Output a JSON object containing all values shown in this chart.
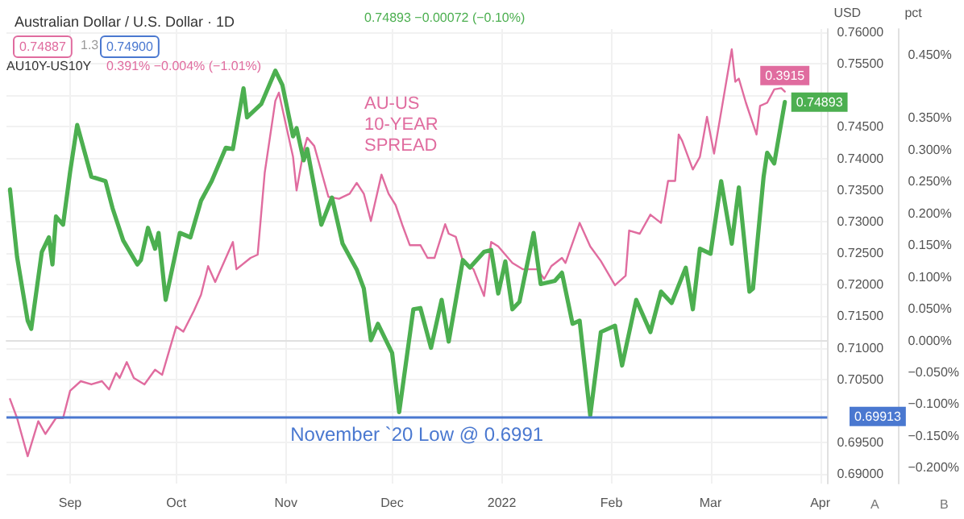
{
  "chart_data": {
    "type": "line",
    "title": "Australian Dollar / U.S. Dollar · 1D",
    "ylabel": "USD",
    "y2label": "pct",
    "annotations": [
      "0.74893 −0.00072 (−0.10%)",
      "0.74887",
      "1.3",
      "0.74900",
      "AU10Y-US10Y",
      "0.391% −0.004% (−1.01%)",
      "A",
      "B",
      "0.69913"
    ],
    "xlim": [
      "2021-08-14",
      "2022-04-03"
    ],
    "xticks": [
      {
        "value": "2021-09-01",
        "label": "Sep"
      },
      {
        "value": "2021-10-01",
        "label": "Oct"
      },
      {
        "value": "2021-11-01",
        "label": "Nov"
      },
      {
        "value": "2021-12-01",
        "label": "Dec"
      },
      {
        "value": "2022-01-01",
        "label": "2022"
      },
      {
        "value": "2022-02-01",
        "label": "Feb"
      },
      {
        "value": "2022-03-01",
        "label": "Mar"
      },
      {
        "value": "2022-04-01",
        "label": "Apr"
      }
    ],
    "ylim": [
      0.6885,
      0.7605
    ],
    "yticks": [
      {
        "value": 0.69,
        "label": "0.69000"
      },
      {
        "value": 0.695,
        "label": "0.69500"
      },
      {
        "value": 0.7,
        "label": null
      },
      {
        "value": 0.705,
        "label": "0.70500"
      },
      {
        "value": 0.71,
        "label": "0.71000"
      },
      {
        "value": 0.715,
        "label": "0.71500"
      },
      {
        "value": 0.72,
        "label": "0.72000"
      },
      {
        "value": 0.725,
        "label": "0.72500"
      },
      {
        "value": 0.73,
        "label": "0.73000"
      },
      {
        "value": 0.735,
        "label": "0.73500"
      },
      {
        "value": 0.74,
        "label": "0.74000"
      },
      {
        "value": 0.745,
        "label": "0.74500"
      },
      {
        "value": 0.75,
        "label": null
      },
      {
        "value": 0.755,
        "label": "0.75500"
      },
      {
        "value": 0.76,
        "label": "0.76000"
      }
    ],
    "y2lim": [
      -0.225,
      0.49
    ],
    "y2ticks": [
      {
        "value": -0.2,
        "label": "−0.200%"
      },
      {
        "value": -0.15,
        "label": "−0.150%"
      },
      {
        "value": -0.1,
        "label": "−0.100%"
      },
      {
        "value": -0.05,
        "label": "−0.050%"
      },
      {
        "value": 0,
        "label": "0.000%"
      },
      {
        "value": 0.05,
        "label": "0.050%"
      },
      {
        "value": 0.1,
        "label": "0.100%"
      },
      {
        "value": 0.15,
        "label": "0.150%"
      },
      {
        "value": 0.2,
        "label": "0.200%"
      },
      {
        "value": 0.25,
        "label": "0.250%"
      },
      {
        "value": 0.3,
        "label": "0.300%"
      },
      {
        "value": 0.35,
        "label": "0.350%"
      },
      {
        "value": 0.45,
        "label": "0.450%"
      }
    ],
    "grid": true,
    "marker": "none",
    "line_style": "solid",
    "ref_lines": [
      {
        "axis": "y",
        "value": 0.69913,
        "label": "November `20 Low @ 0.6991",
        "color": "#4a78d0"
      }
    ],
    "series": [
      {
        "color": "#4caf50",
        "x": [
          "2021-08-15",
          "2021-08-17",
          "2021-08-20",
          "2021-08-21",
          "2021-08-24",
          "2021-08-26",
          "2021-08-27",
          "2021-08-28",
          "2021-08-30",
          "2021-09-01",
          "2021-09-03",
          "2021-09-07",
          "2021-09-11",
          "2021-09-13",
          "2021-09-16",
          "2021-09-20",
          "2021-09-21",
          "2021-09-23",
          "2021-09-25",
          "2021-09-26",
          "2021-09-28",
          "2021-10-02",
          "2021-10-05",
          "2021-10-08",
          "2021-10-11",
          "2021-10-15",
          "2021-10-17",
          "2021-10-20",
          "2021-10-21",
          "2021-10-25",
          "2021-10-29",
          "2021-10-31",
          "2021-11-03",
          "2021-11-04",
          "2021-11-06",
          "2021-11-07",
          "2021-11-11",
          "2021-11-14",
          "2021-11-17",
          "2021-11-21",
          "2021-11-23",
          "2021-11-25",
          "2021-11-27",
          "2021-12-01",
          "2021-12-03",
          "2021-12-07",
          "2021-12-09",
          "2021-12-12",
          "2021-12-15",
          "2021-12-17",
          "2021-12-21",
          "2021-12-23",
          "2021-12-27",
          "2021-12-29",
          "2021-12-31",
          "2022-01-02",
          "2022-01-04",
          "2022-01-06",
          "2022-01-10",
          "2022-01-12",
          "2022-01-16",
          "2022-01-18",
          "2022-01-21",
          "2022-01-23",
          "2022-01-26",
          "2022-01-29",
          "2022-02-02",
          "2022-02-04",
          "2022-02-08",
          "2022-02-12",
          "2022-02-15",
          "2022-02-18",
          "2022-02-22",
          "2022-02-24",
          "2022-02-26",
          "2022-03-01",
          "2022-03-04",
          "2022-03-07",
          "2022-03-09",
          "2022-03-12",
          "2022-03-13",
          "2022-03-16",
          "2022-03-17",
          "2022-03-19",
          "2022-03-22"
        ],
        "values": [
          0.7351,
          0.7244,
          0.7143,
          0.713,
          0.7252,
          0.7275,
          0.7232,
          0.7308,
          0.7295,
          0.7379,
          0.7453,
          0.7371,
          0.7364,
          0.7321,
          0.727,
          0.7232,
          0.7239,
          0.729,
          0.7257,
          0.7282,
          0.7176,
          0.7282,
          0.7275,
          0.7333,
          0.7364,
          0.7417,
          0.7415,
          0.7511,
          0.7465,
          0.7486,
          0.7539,
          0.7516,
          0.7435,
          0.7448,
          0.7397,
          0.7415,
          0.7295,
          0.7338,
          0.7265,
          0.7224,
          0.7194,
          0.7112,
          0.7138,
          0.7092,
          0.6998,
          0.7161,
          0.7163,
          0.71,
          0.7176,
          0.711,
          0.7239,
          0.7227,
          0.7252,
          0.7255,
          0.7186,
          0.7237,
          0.7161,
          0.7173,
          0.7282,
          0.7201,
          0.7206,
          0.7219,
          0.7138,
          0.7143,
          0.6993,
          0.7125,
          0.7135,
          0.7072,
          0.7176,
          0.7125,
          0.7189,
          0.7171,
          0.7227,
          0.7161,
          0.7257,
          0.7249,
          0.7364,
          0.7265,
          0.7354,
          0.7189,
          0.7194,
          0.7371,
          0.7409,
          0.7392,
          0.74893
        ],
        "value_labels": [
          null,
          null,
          null,
          null,
          null,
          null,
          null,
          null,
          null,
          null,
          null,
          null,
          null,
          null,
          null,
          null,
          null,
          null,
          null,
          null,
          null,
          null,
          null,
          null,
          null,
          null,
          null,
          null,
          null,
          null,
          null,
          null,
          null,
          null,
          null,
          null,
          null,
          null,
          null,
          null,
          null,
          null,
          null,
          null,
          null,
          null,
          null,
          null,
          null,
          null,
          null,
          null,
          null,
          null,
          null,
          null,
          null,
          null,
          null,
          null,
          null,
          null,
          null,
          null,
          null,
          null,
          null,
          null,
          null,
          null,
          null,
          null,
          null,
          null,
          null,
          null,
          null,
          null,
          null,
          null,
          null,
          null,
          null,
          null,
          "0.74893"
        ]
      },
      {
        "name": "AU-US\n10-YEAR\nSPREAD",
        "color": "#e06c9f",
        "axis": "y2",
        "x": [
          "2021-08-15",
          "2021-08-17",
          "2021-08-20",
          "2021-08-23",
          "2021-08-25",
          "2021-08-28",
          "2021-08-30",
          "2021-09-01",
          "2021-09-04",
          "2021-09-07",
          "2021-09-10",
          "2021-09-12",
          "2021-09-14",
          "2021-09-15",
          "2021-09-17",
          "2021-09-19",
          "2021-09-22",
          "2021-09-25",
          "2021-09-27",
          "2021-10-01",
          "2021-10-03",
          "2021-10-06",
          "2021-10-08",
          "2021-10-10",
          "2021-10-12",
          "2021-10-17",
          "2021-10-18",
          "2021-10-22",
          "2021-10-24",
          "2021-10-26",
          "2021-10-29",
          "2021-10-30",
          "2021-11-01",
          "2021-11-03",
          "2021-11-04",
          "2021-11-06",
          "2021-11-07",
          "2021-11-09",
          "2021-11-13",
          "2021-11-16",
          "2021-11-19",
          "2021-11-21",
          "2021-11-23",
          "2021-11-25",
          "2021-11-28",
          "2021-11-30",
          "2021-12-02",
          "2021-12-04",
          "2021-12-06",
          "2021-12-09",
          "2021-12-11",
          "2021-12-13",
          "2021-12-16",
          "2021-12-17",
          "2021-12-19",
          "2021-12-21",
          "2021-12-24",
          "2021-12-27",
          "2021-12-29",
          "2021-12-31",
          "2022-01-04",
          "2022-01-07",
          "2022-01-11",
          "2022-01-13",
          "2022-01-15",
          "2022-01-18",
          "2022-01-19",
          "2022-01-23",
          "2022-01-26",
          "2022-01-29",
          "2022-02-02",
          "2022-02-05",
          "2022-02-06",
          "2022-02-09",
          "2022-02-12",
          "2022-02-15",
          "2022-02-17",
          "2022-02-19",
          "2022-02-20",
          "2022-02-21",
          "2022-02-24",
          "2022-02-26",
          "2022-02-28",
          "2022-03-02",
          "2022-03-07",
          "2022-03-08",
          "2022-03-09",
          "2022-03-11",
          "2022-03-14",
          "2022-03-15",
          "2022-03-17",
          "2022-03-19",
          "2022-03-21",
          "2022-03-22"
        ],
        "values": [
          -0.092,
          -0.122,
          -0.182,
          -0.127,
          -0.147,
          -0.122,
          -0.122,
          -0.079,
          -0.064,
          -0.069,
          -0.064,
          -0.077,
          -0.051,
          -0.059,
          -0.034,
          -0.059,
          -0.069,
          -0.046,
          -0.054,
          0.022,
          0.014,
          0.047,
          0.072,
          0.117,
          0.092,
          0.155,
          0.112,
          0.13,
          0.135,
          0.264,
          0.377,
          0.39,
          0.339,
          0.289,
          0.236,
          0.299,
          0.319,
          0.306,
          0.226,
          0.223,
          0.231,
          0.248,
          0.231,
          0.188,
          0.261,
          0.231,
          0.213,
          0.18,
          0.15,
          0.15,
          0.13,
          0.13,
          0.183,
          0.168,
          0.163,
          0.125,
          0.112,
          0.07,
          0.155,
          0.148,
          0.122,
          0.112,
          0.112,
          0.097,
          0.117,
          0.13,
          0.122,
          0.185,
          0.148,
          0.125,
          0.087,
          0.102,
          0.173,
          0.168,
          0.198,
          0.185,
          0.251,
          0.251,
          0.324,
          0.314,
          0.269,
          0.289,
          0.352,
          0.294,
          0.458,
          0.407,
          0.412,
          0.374,
          0.324,
          0.369,
          0.374,
          0.395,
          0.397,
          0.3915
        ],
        "value_labels": [
          null,
          null,
          null,
          null,
          null,
          null,
          null,
          null,
          null,
          null,
          null,
          null,
          null,
          null,
          null,
          null,
          null,
          null,
          null,
          null,
          null,
          null,
          null,
          null,
          null,
          null,
          null,
          null,
          null,
          null,
          null,
          null,
          null,
          null,
          null,
          null,
          null,
          null,
          null,
          null,
          null,
          null,
          null,
          null,
          null,
          null,
          null,
          null,
          null,
          null,
          null,
          null,
          null,
          null,
          null,
          null,
          null,
          null,
          null,
          null,
          null,
          null,
          null,
          null,
          null,
          null,
          null,
          null,
          null,
          null,
          null,
          null,
          null,
          null,
          null,
          null,
          null,
          null,
          null,
          null,
          null,
          null,
          null,
          null,
          null,
          null,
          null,
          null,
          null,
          null,
          null,
          null,
          null,
          "0.3915"
        ]
      }
    ]
  }
}
